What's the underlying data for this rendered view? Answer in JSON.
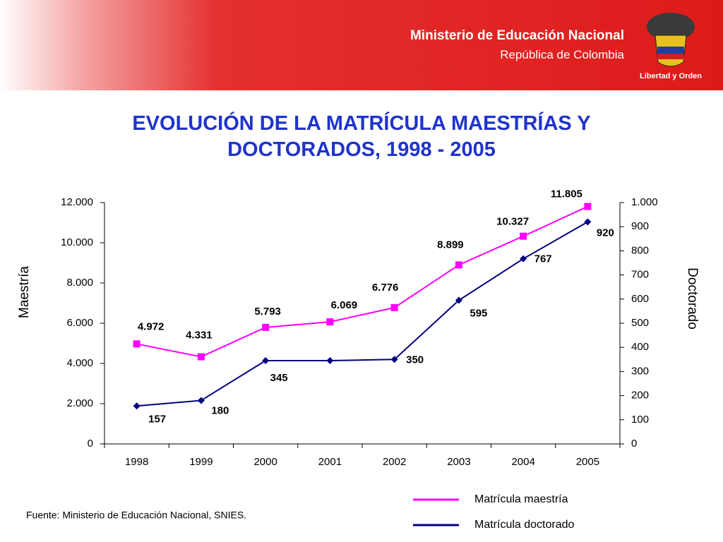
{
  "header": {
    "ministry": "Ministerio de Educación Nacional",
    "country": "República de Colombia",
    "motto": "Libertad y Orden"
  },
  "chart_data": {
    "type": "line",
    "title": "EVOLUCIÓN DE LA MATRÍCULA MAESTRÍAS Y DOCTORADOS, 1998 - 2005",
    "categories": [
      "1998",
      "1999",
      "2000",
      "2001",
      "2002",
      "2003",
      "2004",
      "2005"
    ],
    "ylabel": "Maestría",
    "y2label": "Doctorado",
    "ylim": [
      0,
      12000
    ],
    "yticks": [
      0,
      {
        "value": 2000,
        "label": "2.000"
      },
      {
        "value": 4000,
        "label": "4.000"
      },
      {
        "value": 6000,
        "label": "6.000"
      },
      {
        "value": 8000,
        "label": "8.000"
      },
      {
        "value": 10000,
        "label": "10.000"
      },
      {
        "value": 12000,
        "label": "12.000"
      }
    ],
    "y2lim": [
      0,
      1000
    ],
    "y2ticks": [
      0,
      100,
      200,
      300,
      400,
      500,
      600,
      700,
      800,
      900,
      {
        "value": 1000,
        "label": "1.000"
      }
    ],
    "grid": false,
    "series": [
      {
        "name": "Matrícula maestría",
        "color": "#ff00ff",
        "marker": "square",
        "values": [
          4972,
          4331,
          5793,
          6069,
          6776,
          8899,
          10327,
          11805
        ],
        "value_labels": [
          "4.972",
          "4.331",
          "5.793",
          "6.069",
          "6.776",
          "8.899",
          "10.327",
          "11.805"
        ]
      },
      {
        "name": "Matrícula doctorado",
        "color": "#000080",
        "marker": "diamond",
        "axis": "y2",
        "values": [
          157,
          180,
          345,
          345,
          350,
          595,
          767,
          920
        ],
        "value_labels": [
          "157",
          "180",
          "345",
          null,
          "350",
          "595",
          "767",
          "920"
        ]
      }
    ],
    "source": "Fuente: Ministerio de Educación Nacional, SNIES."
  }
}
